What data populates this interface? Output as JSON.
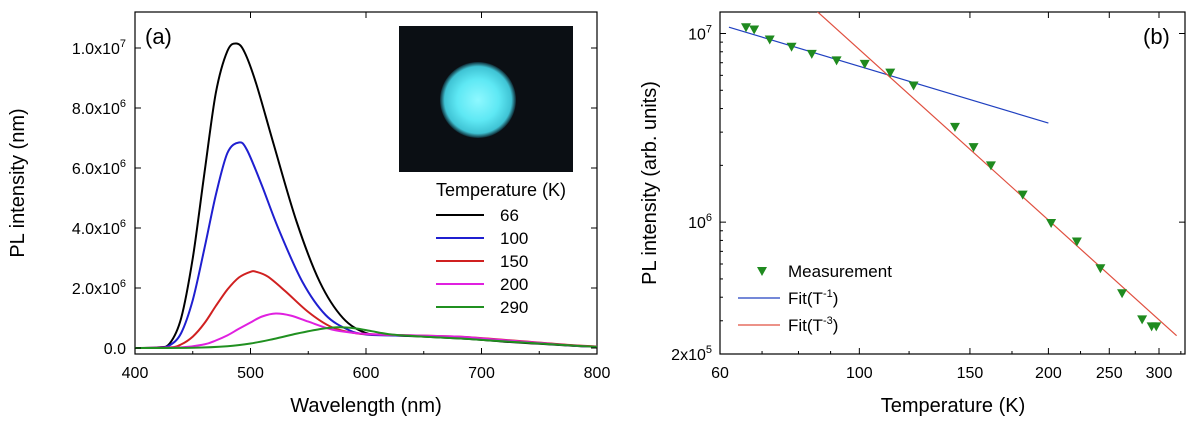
{
  "chart_data": [
    {
      "panel_label": "(a)",
      "type": "line",
      "xlabel": "Wavelength (nm)",
      "ylabel": "PL intensity (nm)",
      "xlim": [
        400,
        800
      ],
      "ylim": [
        -200000,
        11200000
      ],
      "x_ticks": [
        400,
        500,
        600,
        700,
        800
      ],
      "y_ticks": [
        {
          "value": 0,
          "label": "0.0"
        },
        {
          "value": 2000000,
          "mantissa": "2.0x10",
          "exp": "6"
        },
        {
          "value": 4000000,
          "mantissa": "4.0x10",
          "exp": "6"
        },
        {
          "value": 6000000,
          "mantissa": "6.0x10",
          "exp": "6"
        },
        {
          "value": 8000000,
          "mantissa": "8.0x10",
          "exp": "6"
        },
        {
          "value": 10000000,
          "mantissa": "1.0x10",
          "exp": "7"
        }
      ],
      "legend_title": "Temperature (K)",
      "legend_position": "right",
      "inset_image": "cyan-emission-spot-photo",
      "grid": false,
      "series": [
        {
          "name": "66",
          "color": "#000000",
          "x": [
            400,
            420,
            430,
            440,
            450,
            460,
            470,
            480,
            488,
            495,
            505,
            520,
            540,
            560,
            580,
            600,
            620,
            650,
            680,
            700,
            720,
            750,
            780,
            800
          ],
          "y": [
            0,
            20000,
            150000,
            1000000,
            3000000,
            5800000,
            8500000,
            9900000,
            10150000,
            9850000,
            8800000,
            6800000,
            4200000,
            2200000,
            1000000,
            500000,
            430000,
            380000,
            320000,
            270000,
            210000,
            140000,
            70000,
            40000
          ]
        },
        {
          "name": "100",
          "color": "#1f1fd0",
          "x": [
            400,
            420,
            430,
            440,
            450,
            460,
            470,
            480,
            490,
            497,
            510,
            525,
            545,
            565,
            585,
            600,
            620,
            650,
            680,
            700,
            720,
            750,
            780,
            800
          ],
          "y": [
            0,
            15000,
            90000,
            500000,
            1600000,
            3300000,
            5100000,
            6500000,
            6850000,
            6600000,
            5400000,
            3900000,
            2200000,
            1100000,
            600000,
            450000,
            420000,
            400000,
            360000,
            310000,
            250000,
            160000,
            80000,
            40000
          ]
        },
        {
          "name": "150",
          "color": "#d02020",
          "x": [
            400,
            430,
            440,
            450,
            460,
            470,
            480,
            490,
            500,
            505,
            515,
            530,
            550,
            570,
            590,
            610,
            640,
            680,
            700,
            720,
            750,
            780,
            800
          ],
          "y": [
            0,
            20000,
            120000,
            380000,
            820000,
            1400000,
            1950000,
            2350000,
            2540000,
            2540000,
            2380000,
            1900000,
            1200000,
            700000,
            500000,
            450000,
            420000,
            380000,
            330000,
            270000,
            180000,
            90000,
            50000
          ]
        },
        {
          "name": "200",
          "color": "#e020e0",
          "x": [
            400,
            440,
            460,
            470,
            480,
            490,
            500,
            510,
            522,
            535,
            550,
            570,
            590,
            610,
            640,
            680,
            700,
            720,
            750,
            780,
            800
          ],
          "y": [
            0,
            20000,
            120000,
            250000,
            420000,
            640000,
            850000,
            1050000,
            1150000,
            1080000,
            880000,
            620000,
            500000,
            450000,
            420000,
            380000,
            320000,
            260000,
            170000,
            80000,
            40000
          ]
        },
        {
          "name": "290",
          "color": "#209020",
          "x": [
            400,
            450,
            480,
            500,
            520,
            540,
            560,
            575,
            590,
            605,
            620,
            640,
            660,
            680,
            700,
            720,
            750,
            780,
            800
          ],
          "y": [
            0,
            10000,
            60000,
            150000,
            300000,
            480000,
            630000,
            690000,
            660000,
            560000,
            460000,
            400000,
            360000,
            320000,
            270000,
            220000,
            150000,
            80000,
            40000
          ]
        }
      ]
    },
    {
      "panel_label": "(b)",
      "type": "scatter",
      "xlabel": "Temperature (K)",
      "ylabel": "PL intensity (arb. units)",
      "xscale": "log",
      "yscale": "log",
      "xlim": [
        60,
        330
      ],
      "ylim": [
        200000,
        13000000
      ],
      "x_ticks": [
        60,
        100,
        150,
        200,
        250,
        300
      ],
      "y_ticks": [
        {
          "value": 200000,
          "mantissa": "2x10",
          "exp": "5"
        },
        {
          "value": 1000000,
          "mantissa": "10",
          "exp": "6"
        },
        {
          "value": 10000000,
          "mantissa": "10",
          "exp": "7"
        }
      ],
      "legend_position": "lower-left",
      "grid": false,
      "series": [
        {
          "name": "Measurement",
          "kind": "points",
          "marker": "triangle-down",
          "color": "#1f8a1f",
          "x": [
            66,
            68,
            72,
            78,
            84,
            92,
            102,
            112,
            122,
            142,
            152,
            162,
            182,
            202,
            222,
            242,
            262,
            282,
            292,
            297
          ],
          "y": [
            10800000,
            10500000,
            9300000,
            8500000,
            7800000,
            7200000,
            6900000,
            6200000,
            5300000,
            3200000,
            2500000,
            2000000,
            1400000,
            990000,
            790000,
            570000,
            420000,
            305000,
            280000,
            280000
          ]
        },
        {
          "name": "Fit(T<sup>-1</sup>)",
          "legend_main": "Fit(T",
          "legend_exp": "-1",
          "legend_close": ")",
          "kind": "line",
          "color": "#2040c0",
          "x": [
            62,
            200
          ],
          "y": [
            10800000,
            3350000
          ]
        },
        {
          "name": "Fit(T<sup>-3</sup>)",
          "legend_main": "Fit(T",
          "legend_exp": "-3",
          "legend_close": ")",
          "kind": "line",
          "color": "#e05040",
          "x": [
            70,
            320
          ],
          "y": [
            24000000,
            250000
          ]
        }
      ]
    }
  ]
}
